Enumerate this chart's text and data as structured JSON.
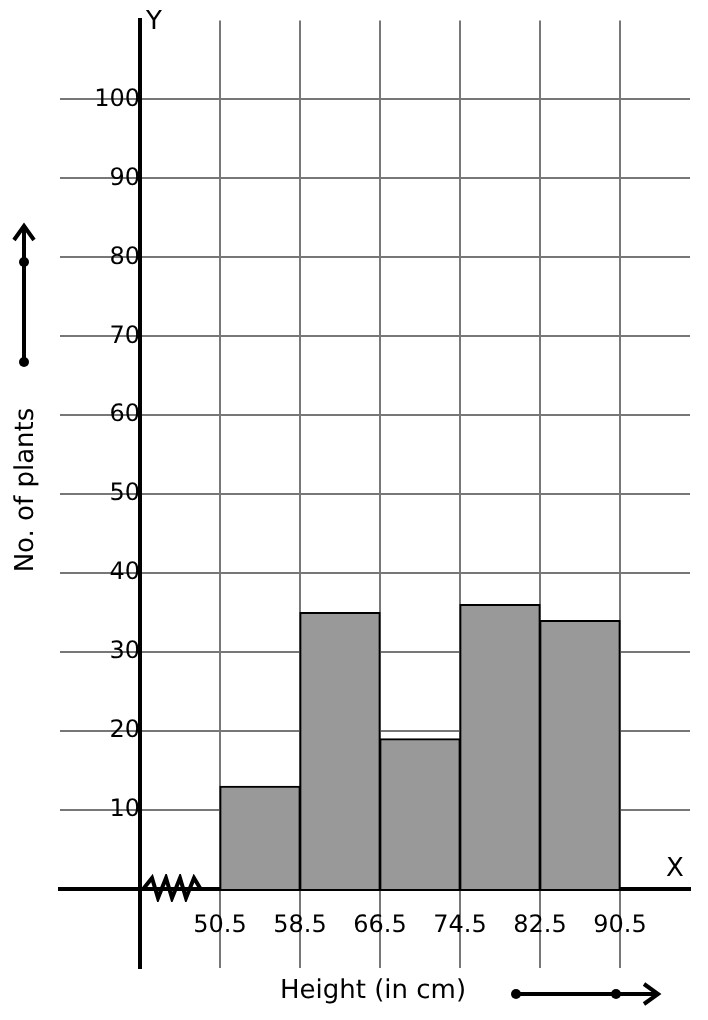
{
  "chart_data": {
    "type": "histogram",
    "xlabel": "Height (in cm)",
    "ylabel": "No. of plants",
    "bins": [
      50.5,
      58.5,
      66.5,
      74.5,
      82.5,
      90.5
    ],
    "values": [
      13,
      35,
      19,
      36,
      34
    ],
    "color": "#999999",
    "xlim": [
      34.5,
      97.5
    ],
    "xticks": [
      50.5,
      58.5,
      66.5,
      74.5,
      82.5,
      90.5
    ],
    "ylim": [
      -10,
      110
    ],
    "yticks": [
      10,
      20,
      30,
      40,
      50,
      60,
      70,
      80,
      90,
      100
    ],
    "annotations": [
      "Y",
      "X"
    ],
    "grid": true
  }
}
